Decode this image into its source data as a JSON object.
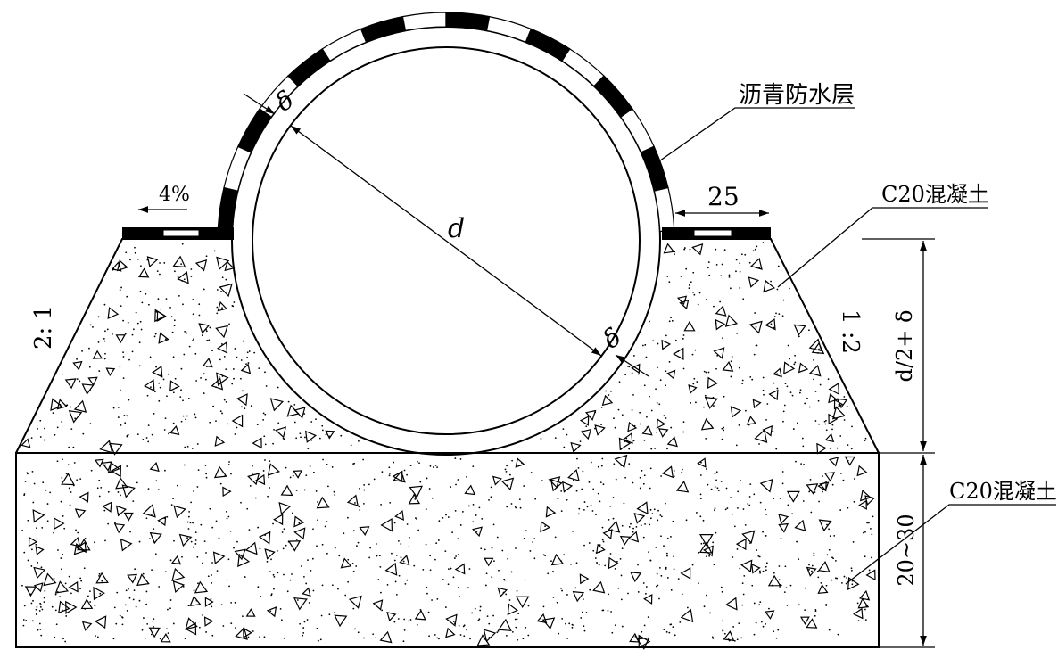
{
  "labels": {
    "waterproof_layer": "沥青防水层",
    "concrete_top": "C20混凝土",
    "concrete_bottom": "C20混凝土",
    "slope_left": "2: 1",
    "slope_right": "1 :2",
    "grade": "4%",
    "dim_25": "25",
    "dim_height": "d/2+ δ",
    "dim_base": "20~30",
    "diameter": "d",
    "thickness_top": "δ",
    "thickness_bottom": "δ"
  },
  "colors": {
    "line": "#000000",
    "background": "#ffffff"
  }
}
